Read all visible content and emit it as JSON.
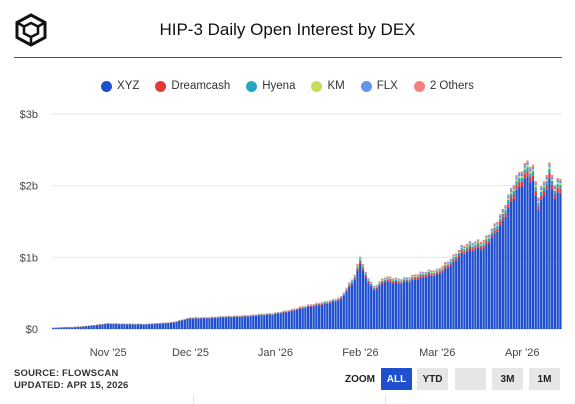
{
  "title": "HIP-3 Daily Open Interest by DEX",
  "logo_icon": "cube-icon",
  "accent_color": "#8e24aa",
  "legend": [
    {
      "name": "XYZ",
      "color": "#1f4fcf"
    },
    {
      "name": "Dreamcash",
      "color": "#e53935"
    },
    {
      "name": "Hyena",
      "color": "#26a6bf"
    },
    {
      "name": "KM",
      "color": "#c7dd5a"
    },
    {
      "name": "FLX",
      "color": "#6495ed"
    },
    {
      "name": "2 Others",
      "color": "#f28080"
    }
  ],
  "source": {
    "line1": "SOURCE: FLOWSCAN",
    "line2": "UPDATED: APR 15, 2026"
  },
  "zoom": {
    "label": "ZOOM",
    "buttons": [
      "ALL",
      "YTD",
      "",
      "3M",
      "1M"
    ],
    "active": "ALL"
  },
  "chart_data": {
    "type": "bar",
    "stacked": true,
    "title": "HIP-3 Daily Open Interest by DEX",
    "xlabel": "",
    "ylabel": "",
    "y_ticks": [
      "$0",
      "$1b",
      "$2b",
      "$3b"
    ],
    "ylim": [
      0,
      3
    ],
    "y_unit": "billions USD",
    "x_ticks": [
      "Nov '25",
      "Dec '25",
      "Jan '26",
      "Feb '26",
      "Mar '26",
      "Apr '26"
    ],
    "x_range": [
      "2025-10-12",
      "2026-04-15"
    ],
    "x_tick_dates": [
      "2025-11-01",
      "2025-12-01",
      "2026-01-01",
      "2026-02-01",
      "2026-03-01",
      "2026-04-01"
    ],
    "grid": true,
    "legend_position": "top",
    "series_names": [
      "XYZ",
      "Dreamcash",
      "Hyena",
      "KM",
      "FLX",
      "2 Others"
    ],
    "total_keypoints": {
      "dates": [
        "2025-10-12",
        "2025-10-20",
        "2025-10-28",
        "2025-11-01",
        "2025-11-15",
        "2025-11-25",
        "2025-12-01",
        "2025-12-15",
        "2025-12-31",
        "2026-01-15",
        "2026-01-25",
        "2026-01-30",
        "2026-02-01",
        "2026-02-03",
        "2026-02-06",
        "2026-02-10",
        "2026-02-15",
        "2026-02-22",
        "2026-03-01",
        "2026-03-10",
        "2026-03-18",
        "2026-03-25",
        "2026-03-30",
        "2026-04-03",
        "2026-04-05",
        "2026-04-07",
        "2026-04-09",
        "2026-04-11",
        "2026-04-13",
        "2026-04-15"
      ],
      "values": [
        0.02,
        0.03,
        0.06,
        0.08,
        0.07,
        0.1,
        0.16,
        0.18,
        0.22,
        0.35,
        0.45,
        0.75,
        1.03,
        0.8,
        0.6,
        0.72,
        0.7,
        0.78,
        0.82,
        1.15,
        1.25,
        1.65,
        2.1,
        2.38,
        2.3,
        1.88,
        2.05,
        2.25,
        2.0,
        2.1
      ]
    }
  }
}
